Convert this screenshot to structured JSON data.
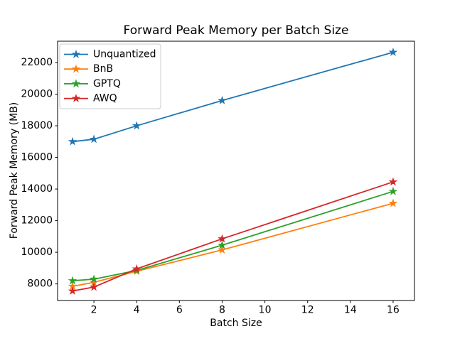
{
  "figure": {
    "background": "#ffffff",
    "axes_edge_color": "#000000"
  },
  "chart_data": {
    "type": "line",
    "title": "Forward Peak Memory per Batch Size",
    "xlabel": "Batch Size",
    "ylabel": "Forward Peak Memory (MB)",
    "x": [
      1,
      2,
      4,
      8,
      16
    ],
    "series": [
      {
        "name": "Unquantized",
        "color": "#1f77b4",
        "marker": "star",
        "values": [
          17000,
          17150,
          18000,
          19600,
          22650
        ]
      },
      {
        "name": "BnB",
        "color": "#ff7f0e",
        "marker": "star",
        "values": [
          7850,
          8100,
          8800,
          10150,
          13100
        ]
      },
      {
        "name": "GPTQ",
        "color": "#2ca02c",
        "marker": "star",
        "values": [
          8200,
          8300,
          8850,
          10450,
          13850
        ]
      },
      {
        "name": "AWQ",
        "color": "#d62728",
        "marker": "star",
        "values": [
          7550,
          7800,
          8950,
          10850,
          14450
        ]
      }
    ],
    "x_ticks": [
      2,
      4,
      6,
      8,
      10,
      12,
      14,
      16
    ],
    "y_ticks": [
      8000,
      10000,
      12000,
      14000,
      16000,
      18000,
      20000,
      22000
    ],
    "xlim": [
      0.3,
      17.0
    ],
    "ylim": [
      6950,
      23350
    ],
    "grid": false,
    "legend": {
      "position": "upper left",
      "border_color": "#cccccc",
      "background": "#ffffff"
    }
  }
}
